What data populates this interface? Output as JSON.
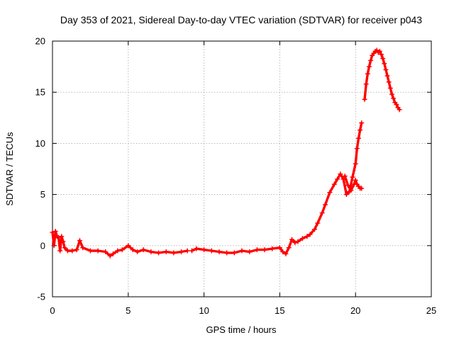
{
  "chart_data": {
    "type": "scatter",
    "title": "Day 353 of 2021, Sidereal Day-to-day VTEC variation (SDTVAR) for receiver p043",
    "xlabel": "GPS time / hours",
    "ylabel": "SDTVAR / TECUs",
    "xlim": [
      0,
      25
    ],
    "ylim": [
      -5,
      20
    ],
    "xticks": [
      "0",
      "5",
      "10",
      "15",
      "20",
      "25"
    ],
    "yticks": [
      "-5",
      "0",
      "5",
      "10",
      "15",
      "20"
    ],
    "grid": true,
    "legend": "none",
    "marker": "plus",
    "series": [
      {
        "name": "SDTVAR p043",
        "color": "#ff0000",
        "segments": [
          {
            "x": [
              0.0,
              0.1,
              0.2,
              0.3,
              0.4,
              0.5,
              0.6,
              0.7,
              0.8,
              1.0,
              1.3,
              1.6,
              1.8,
              2.0,
              2.5,
              3.0,
              3.5,
              3.8,
              4.0,
              4.3,
              4.6,
              5.0,
              5.3,
              5.6,
              6.0,
              6.5,
              7.0,
              7.5,
              8.0,
              8.5,
              8.9
            ],
            "y": [
              1.3,
              0.0,
              1.4,
              0.9,
              0.8,
              -0.5,
              0.9,
              0.4,
              -0.2,
              -0.5,
              -0.5,
              -0.4,
              0.5,
              -0.2,
              -0.5,
              -0.5,
              -0.6,
              -1.0,
              -0.8,
              -0.5,
              -0.4,
              0.0,
              -0.4,
              -0.6,
              -0.4,
              -0.6,
              -0.7,
              -0.6,
              -0.7,
              -0.6,
              -0.5
            ]
          },
          {
            "x": [
              9.2,
              9.5,
              10.0,
              10.5,
              11.0,
              11.5,
              12.0,
              12.5,
              13.0,
              13.5,
              14.0,
              14.5,
              15.0,
              15.2,
              15.4,
              15.6,
              15.8,
              16.0,
              16.2,
              16.5,
              16.8,
              17.0,
              17.3,
              17.5,
              17.8,
              18.0,
              18.3,
              18.6,
              18.8,
              19.0,
              19.2,
              19.4,
              19.6,
              19.8,
              20.0,
              20.1,
              20.2,
              20.3,
              20.4
            ],
            "y": [
              -0.5,
              -0.3,
              -0.4,
              -0.5,
              -0.6,
              -0.7,
              -0.7,
              -0.5,
              -0.6,
              -0.4,
              -0.4,
              -0.3,
              -0.2,
              -0.6,
              -0.8,
              -0.2,
              0.6,
              0.3,
              0.4,
              0.7,
              0.9,
              1.1,
              1.6,
              2.2,
              3.2,
              4.0,
              5.2,
              6.0,
              6.5,
              7.0,
              6.5,
              5.0,
              5.3,
              6.7,
              8.0,
              9.5,
              10.5,
              11.3,
              12.0
            ]
          },
          {
            "x": [
              19.3,
              19.5,
              19.7,
              19.9,
              20.0,
              20.1,
              20.2,
              20.3,
              20.4
            ],
            "y": [
              6.8,
              5.9,
              5.4,
              6.0,
              6.4,
              6.0,
              5.8,
              5.6,
              5.6
            ]
          },
          {
            "x": [
              20.6,
              20.7,
              20.8,
              20.9,
              21.0,
              21.1,
              21.2,
              21.3,
              21.4,
              21.5,
              21.6,
              21.7,
              21.8,
              21.9,
              22.0,
              22.1,
              22.2,
              22.3,
              22.4,
              22.5,
              22.6,
              22.7,
              22.8,
              22.9
            ],
            "y": [
              14.3,
              15.8,
              16.8,
              17.5,
              18.1,
              18.6,
              18.8,
              19.0,
              19.1,
              18.9,
              19.0,
              18.7,
              18.3,
              17.8,
              17.2,
              16.6,
              16.0,
              15.4,
              14.8,
              14.4,
              14.0,
              13.8,
              13.5,
              13.3
            ]
          }
        ]
      }
    ]
  }
}
